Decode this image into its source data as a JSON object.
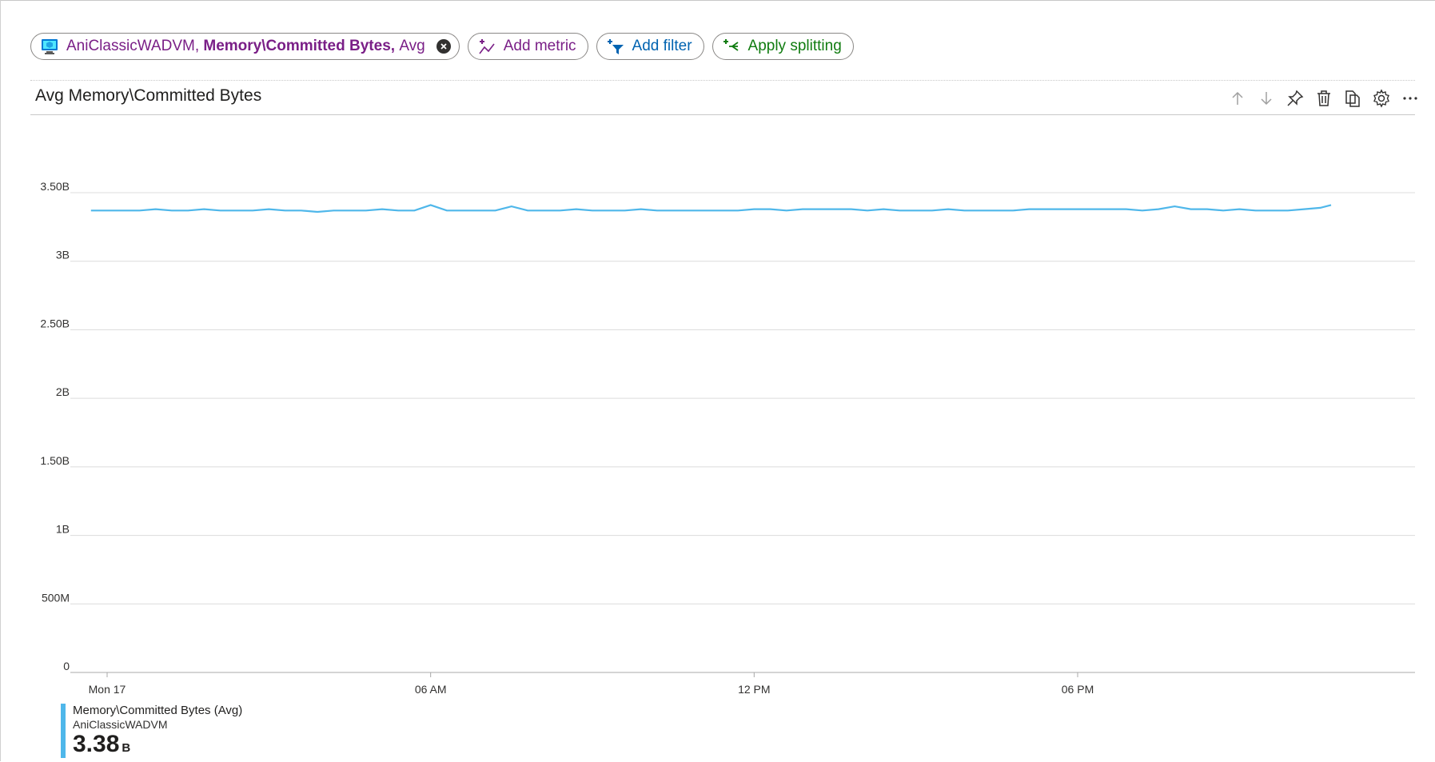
{
  "toolbar": {
    "metric_pill": {
      "resource": "AniClassicWADVM,",
      "metric": "Memory\\Committed Bytes,",
      "aggregation": "Avg"
    },
    "add_metric_label": "Add metric",
    "add_filter_label": "Add filter",
    "apply_splitting_label": "Apply splitting"
  },
  "chart": {
    "title": "Avg Memory\\Committed Bytes",
    "actions": [
      "move-up-icon",
      "move-down-icon",
      "pin-icon",
      "delete-icon",
      "copy-icon",
      "settings-icon",
      "more-icon"
    ]
  },
  "legend": {
    "metric": "Memory\\Committed Bytes (Avg)",
    "resource": "AniClassicWADVM",
    "value": "3.38",
    "unit": "B"
  },
  "colors": {
    "series": "#4fb7ea",
    "metric_purple": "#7a1f87",
    "filter_blue": "#0063b1",
    "split_green": "#107c10"
  },
  "chart_data": {
    "type": "line",
    "ylim": [
      0,
      3.5
    ],
    "y_ticks": [
      0,
      0.5,
      1,
      1.5,
      2,
      2.5,
      3,
      3.5
    ],
    "y_tick_labels": [
      "0",
      "500M",
      "1B",
      "1.50B",
      "2B",
      "2.50B",
      "3B",
      "3.50B"
    ],
    "x_range_hours": [
      0,
      24
    ],
    "x_ticks": [
      0,
      6,
      12,
      18
    ],
    "x_tick_labels": [
      "Mon 17",
      "06 AM",
      "12 PM",
      "06 PM"
    ],
    "grid": true,
    "series": [
      {
        "unit": "billion bytes",
        "x": [
          -0.3,
          0.3,
          0.6,
          0.9,
          1.2,
          1.5,
          1.8,
          2.1,
          2.4,
          2.7,
          3.0,
          3.3,
          3.6,
          3.9,
          4.2,
          4.5,
          4.8,
          5.1,
          5.4,
          5.7,
          6.0,
          6.3,
          6.6,
          6.9,
          7.2,
          7.5,
          7.8,
          8.1,
          8.4,
          8.7,
          9.0,
          9.3,
          9.6,
          9.9,
          10.2,
          10.5,
          10.8,
          11.1,
          11.4,
          11.7,
          12.0,
          12.3,
          12.6,
          12.9,
          13.2,
          13.5,
          13.8,
          14.1,
          14.4,
          14.7,
          15.0,
          15.3,
          15.6,
          15.9,
          16.2,
          16.5,
          16.8,
          17.1,
          17.4,
          17.7,
          18.0,
          18.3,
          18.6,
          18.9,
          19.2,
          19.5,
          19.8,
          20.1,
          20.4,
          20.7,
          21.0,
          21.3,
          21.6,
          21.9,
          22.2,
          22.5,
          22.7
        ],
        "values": [
          3.37,
          3.37,
          3.37,
          3.38,
          3.37,
          3.37,
          3.38,
          3.37,
          3.37,
          3.37,
          3.38,
          3.37,
          3.37,
          3.36,
          3.37,
          3.37,
          3.37,
          3.38,
          3.37,
          3.37,
          3.41,
          3.37,
          3.37,
          3.37,
          3.37,
          3.4,
          3.37,
          3.37,
          3.37,
          3.38,
          3.37,
          3.37,
          3.37,
          3.38,
          3.37,
          3.37,
          3.37,
          3.37,
          3.37,
          3.37,
          3.38,
          3.38,
          3.37,
          3.38,
          3.38,
          3.38,
          3.38,
          3.37,
          3.38,
          3.37,
          3.37,
          3.37,
          3.38,
          3.37,
          3.37,
          3.37,
          3.37,
          3.38,
          3.38,
          3.38,
          3.38,
          3.38,
          3.38,
          3.38,
          3.37,
          3.38,
          3.4,
          3.38,
          3.38,
          3.37,
          3.38,
          3.37,
          3.37,
          3.37,
          3.38,
          3.39,
          3.41
        ]
      }
    ]
  }
}
